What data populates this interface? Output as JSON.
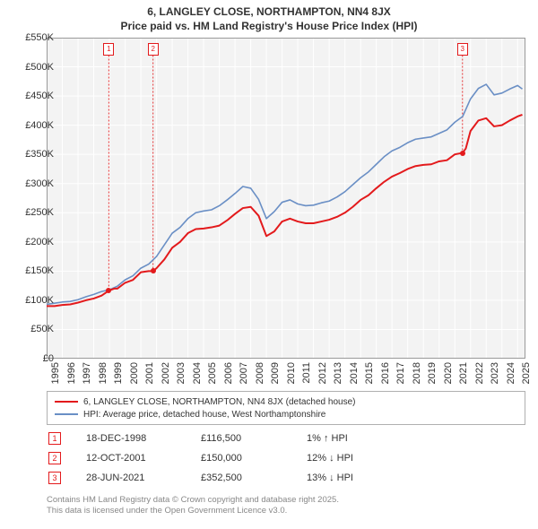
{
  "title_line1": "6, LANGLEY CLOSE, NORTHAMPTON, NN4 8JX",
  "title_line2": "Price paid vs. HM Land Registry's House Price Index (HPI)",
  "chart": {
    "type": "line",
    "background_color": "#fafafa",
    "plot_bg_color": "#f3f3f3",
    "grid_color": "#ffffff",
    "grid_width": 1,
    "axis_color": "#999999",
    "xlim": [
      1995,
      2025.5
    ],
    "ylim": [
      0,
      550000
    ],
    "y_ticks": [
      0,
      50000,
      100000,
      150000,
      200000,
      250000,
      300000,
      350000,
      400000,
      450000,
      500000,
      550000
    ],
    "y_tick_labels": [
      "£0",
      "£50K",
      "£100K",
      "£150K",
      "£200K",
      "£250K",
      "£300K",
      "£350K",
      "£400K",
      "£450K",
      "£500K",
      "£550K"
    ],
    "x_ticks": [
      1995,
      1996,
      1997,
      1998,
      1999,
      2000,
      2001,
      2002,
      2003,
      2004,
      2005,
      2006,
      2007,
      2008,
      2009,
      2010,
      2011,
      2012,
      2013,
      2014,
      2015,
      2016,
      2017,
      2018,
      2019,
      2020,
      2021,
      2022,
      2023,
      2024,
      2025
    ],
    "x_tick_labels": [
      "1995",
      "1996",
      "1997",
      "1998",
      "1999",
      "2000",
      "2001",
      "2002",
      "2003",
      "2004",
      "2005",
      "2006",
      "2007",
      "2008",
      "2009",
      "2010",
      "2011",
      "2012",
      "2013",
      "2014",
      "2015",
      "2016",
      "2017",
      "2018",
      "2019",
      "2020",
      "2021",
      "2022",
      "2023",
      "2024",
      "2025"
    ],
    "tick_fontsize": 11,
    "tick_color": "#333333",
    "series": [
      {
        "name": "property",
        "label": "6, LANGLEY CLOSE, NORTHAMPTON, NN4 8JX (detached house)",
        "color": "#e31a1c",
        "width": 2,
        "data": [
          [
            1995.0,
            90000
          ],
          [
            1995.5,
            90000
          ],
          [
            1996.0,
            92000
          ],
          [
            1996.5,
            93000
          ],
          [
            1997.0,
            96000
          ],
          [
            1997.5,
            100000
          ],
          [
            1998.0,
            103000
          ],
          [
            1998.5,
            108000
          ],
          [
            1998.96,
            116500
          ],
          [
            1999.3,
            120000
          ],
          [
            1999.5,
            120000
          ],
          [
            2000.0,
            130000
          ],
          [
            2000.5,
            135000
          ],
          [
            2001.0,
            148000
          ],
          [
            2001.5,
            150000
          ],
          [
            2001.78,
            150000
          ],
          [
            2002.0,
            155000
          ],
          [
            2002.5,
            170000
          ],
          [
            2003.0,
            190000
          ],
          [
            2003.5,
            200000
          ],
          [
            2004.0,
            215000
          ],
          [
            2004.5,
            222000
          ],
          [
            2005.0,
            223000
          ],
          [
            2005.5,
            225000
          ],
          [
            2006.0,
            228000
          ],
          [
            2006.5,
            237000
          ],
          [
            2007.0,
            248000
          ],
          [
            2007.5,
            258000
          ],
          [
            2008.0,
            260000
          ],
          [
            2008.5,
            245000
          ],
          [
            2009.0,
            210000
          ],
          [
            2009.5,
            218000
          ],
          [
            2010.0,
            235000
          ],
          [
            2010.5,
            240000
          ],
          [
            2011.0,
            235000
          ],
          [
            2011.5,
            232000
          ],
          [
            2012.0,
            232000
          ],
          [
            2012.5,
            235000
          ],
          [
            2013.0,
            238000
          ],
          [
            2013.5,
            243000
          ],
          [
            2014.0,
            250000
          ],
          [
            2014.5,
            260000
          ],
          [
            2015.0,
            272000
          ],
          [
            2015.5,
            280000
          ],
          [
            2016.0,
            292000
          ],
          [
            2016.5,
            303000
          ],
          [
            2017.0,
            312000
          ],
          [
            2017.5,
            318000
          ],
          [
            2018.0,
            325000
          ],
          [
            2018.5,
            330000
          ],
          [
            2019.0,
            332000
          ],
          [
            2019.5,
            333000
          ],
          [
            2020.0,
            338000
          ],
          [
            2020.5,
            340000
          ],
          [
            2021.0,
            350000
          ],
          [
            2021.49,
            352500
          ],
          [
            2021.7,
            360000
          ],
          [
            2022.0,
            390000
          ],
          [
            2022.5,
            408000
          ],
          [
            2023.0,
            412000
          ],
          [
            2023.5,
            398000
          ],
          [
            2024.0,
            400000
          ],
          [
            2024.5,
            408000
          ],
          [
            2025.0,
            415000
          ],
          [
            2025.3,
            418000
          ]
        ]
      },
      {
        "name": "hpi",
        "label": "HPI: Average price, detached house, West Northamptonshire",
        "color": "#6a8fc5",
        "width": 1.6,
        "data": [
          [
            1995.0,
            93000
          ],
          [
            1995.5,
            95000
          ],
          [
            1996.0,
            97000
          ],
          [
            1996.5,
            98000
          ],
          [
            1997.0,
            101000
          ],
          [
            1997.5,
            106000
          ],
          [
            1998.0,
            110000
          ],
          [
            1998.5,
            115000
          ],
          [
            1999.0,
            118000
          ],
          [
            1999.5,
            124000
          ],
          [
            2000.0,
            135000
          ],
          [
            2000.5,
            142000
          ],
          [
            2001.0,
            155000
          ],
          [
            2001.5,
            162000
          ],
          [
            2002.0,
            175000
          ],
          [
            2002.5,
            195000
          ],
          [
            2003.0,
            215000
          ],
          [
            2003.5,
            225000
          ],
          [
            2004.0,
            240000
          ],
          [
            2004.5,
            250000
          ],
          [
            2005.0,
            253000
          ],
          [
            2005.5,
            255000
          ],
          [
            2006.0,
            262000
          ],
          [
            2006.5,
            272000
          ],
          [
            2007.0,
            283000
          ],
          [
            2007.5,
            295000
          ],
          [
            2008.0,
            292000
          ],
          [
            2008.5,
            273000
          ],
          [
            2009.0,
            240000
          ],
          [
            2009.5,
            252000
          ],
          [
            2010.0,
            268000
          ],
          [
            2010.5,
            272000
          ],
          [
            2011.0,
            265000
          ],
          [
            2011.5,
            262000
          ],
          [
            2012.0,
            263000
          ],
          [
            2012.5,
            267000
          ],
          [
            2013.0,
            270000
          ],
          [
            2013.5,
            277000
          ],
          [
            2014.0,
            286000
          ],
          [
            2014.5,
            298000
          ],
          [
            2015.0,
            310000
          ],
          [
            2015.5,
            320000
          ],
          [
            2016.0,
            333000
          ],
          [
            2016.5,
            346000
          ],
          [
            2017.0,
            356000
          ],
          [
            2017.5,
            362000
          ],
          [
            2018.0,
            370000
          ],
          [
            2018.5,
            376000
          ],
          [
            2019.0,
            378000
          ],
          [
            2019.5,
            380000
          ],
          [
            2020.0,
            386000
          ],
          [
            2020.5,
            392000
          ],
          [
            2021.0,
            405000
          ],
          [
            2021.5,
            415000
          ],
          [
            2022.0,
            445000
          ],
          [
            2022.5,
            463000
          ],
          [
            2023.0,
            470000
          ],
          [
            2023.5,
            452000
          ],
          [
            2024.0,
            455000
          ],
          [
            2024.5,
            462000
          ],
          [
            2025.0,
            468000
          ],
          [
            2025.3,
            462000
          ]
        ]
      }
    ],
    "markers": [
      {
        "n": "1",
        "x": 1998.96,
        "y_box": 520000,
        "y_dot": 116500
      },
      {
        "n": "2",
        "x": 2001.78,
        "y_box": 520000,
        "y_dot": 150000
      },
      {
        "n": "3",
        "x": 2021.49,
        "y_box": 520000,
        "y_dot": 352500
      }
    ]
  },
  "legend": {
    "items": [
      {
        "color": "#e31a1c",
        "label": "6, LANGLEY CLOSE, NORTHAMPTON, NN4 8JX (detached house)"
      },
      {
        "color": "#6a8fc5",
        "label": "HPI: Average price, detached house, West Northamptonshire"
      }
    ]
  },
  "marker_table": [
    {
      "n": "1",
      "date": "18-DEC-1998",
      "price": "£116,500",
      "delta": "1% ↑ HPI"
    },
    {
      "n": "2",
      "date": "12-OCT-2001",
      "price": "£150,000",
      "delta": "12% ↓ HPI"
    },
    {
      "n": "3",
      "date": "28-JUN-2021",
      "price": "£352,500",
      "delta": "13% ↓ HPI"
    }
  ],
  "footer_line1": "Contains HM Land Registry data © Crown copyright and database right 2025.",
  "footer_line2": "This data is licensed under the Open Government Licence v3.0."
}
